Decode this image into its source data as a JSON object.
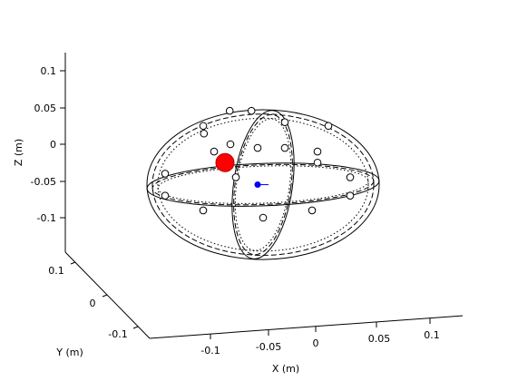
{
  "chart_data": {
    "type": "scatter",
    "projection": "3d",
    "title": "",
    "xlabel": "X (m)",
    "ylabel": "Y (m)",
    "zlabel": "Z (m)",
    "xticks": [
      {
        "value": -0.1,
        "label": "-0.1"
      },
      {
        "value": -0.05,
        "label": "-0.05"
      },
      {
        "value": 0,
        "label": "0"
      },
      {
        "value": 0.05,
        "label": "0.05"
      },
      {
        "value": 0.1,
        "label": "0.1"
      }
    ],
    "yticks": [
      {
        "value": 0.1,
        "label": "0.1"
      },
      {
        "value": 0,
        "label": "0"
      },
      {
        "value": -0.1,
        "label": "-0.1"
      }
    ],
    "zticks": [
      {
        "value": 0.1,
        "label": "0.1"
      },
      {
        "value": 0.05,
        "label": "0.05"
      },
      {
        "value": 0,
        "label": "0"
      },
      {
        "value": -0.05,
        "label": "-0.05"
      },
      {
        "value": -0.1,
        "label": "-0.1"
      }
    ],
    "grid": false,
    "legend": "none",
    "series": [
      {
        "marker": "open-circle",
        "color": "#000000",
        "points": [
          {
            "x": -0.03,
            "y": 0.01,
            "z": 0.045
          },
          {
            "x": -0.01,
            "y": 0.01,
            "z": 0.045
          },
          {
            "x": -0.055,
            "y": 0.0,
            "z": 0.025
          },
          {
            "x": -0.055,
            "y": -0.01,
            "z": 0.015
          },
          {
            "x": 0.02,
            "y": 0.0,
            "z": 0.03
          },
          {
            "x": 0.06,
            "y": 0.0,
            "z": 0.025
          },
          {
            "x": -0.045,
            "y": 0.0,
            "z": -0.01
          },
          {
            "x": -0.03,
            "y": 0.0,
            "z": 0.0
          },
          {
            "x": -0.005,
            "y": 0.0,
            "z": -0.005
          },
          {
            "x": 0.02,
            "y": 0.0,
            "z": -0.005
          },
          {
            "x": 0.05,
            "y": 0.0,
            "z": -0.01
          },
          {
            "x": 0.05,
            "y": 0.0,
            "z": -0.025
          },
          {
            "x": -0.09,
            "y": 0.0,
            "z": -0.04
          },
          {
            "x": -0.09,
            "y": 0.0,
            "z": -0.07
          },
          {
            "x": -0.025,
            "y": 0.0,
            "z": -0.045
          },
          {
            "x": 0.08,
            "y": 0.0,
            "z": -0.045
          },
          {
            "x": 0.08,
            "y": 0.0,
            "z": -0.07
          },
          {
            "x": -0.055,
            "y": 0.0,
            "z": -0.09
          },
          {
            "x": 0.0,
            "y": 0.0,
            "z": -0.1
          },
          {
            "x": 0.045,
            "y": 0.0,
            "z": -0.09
          }
        ]
      },
      {
        "marker": "filled-circle",
        "color": "#ff0000",
        "points": [
          {
            "x": -0.035,
            "y": 0.0,
            "z": -0.025
          }
        ]
      },
      {
        "marker": "filled-circle",
        "color": "#0000ff",
        "points": [
          {
            "x": -0.005,
            "y": 0.0,
            "z": -0.055
          }
        ]
      }
    ],
    "ellipsoids": [
      {
        "center": [
          0.0,
          0.0,
          -0.055
        ],
        "radii": [
          0.1,
          0.08,
          0.08
        ],
        "style": "solid"
      },
      {
        "center": [
          0.0,
          0.0,
          -0.055
        ],
        "radii": [
          0.095,
          0.075,
          0.075
        ],
        "style": "dashed"
      },
      {
        "center": [
          0.0,
          0.0,
          -0.055
        ],
        "radii": [
          0.09,
          0.07,
          0.07
        ],
        "style": "dotted"
      }
    ]
  }
}
